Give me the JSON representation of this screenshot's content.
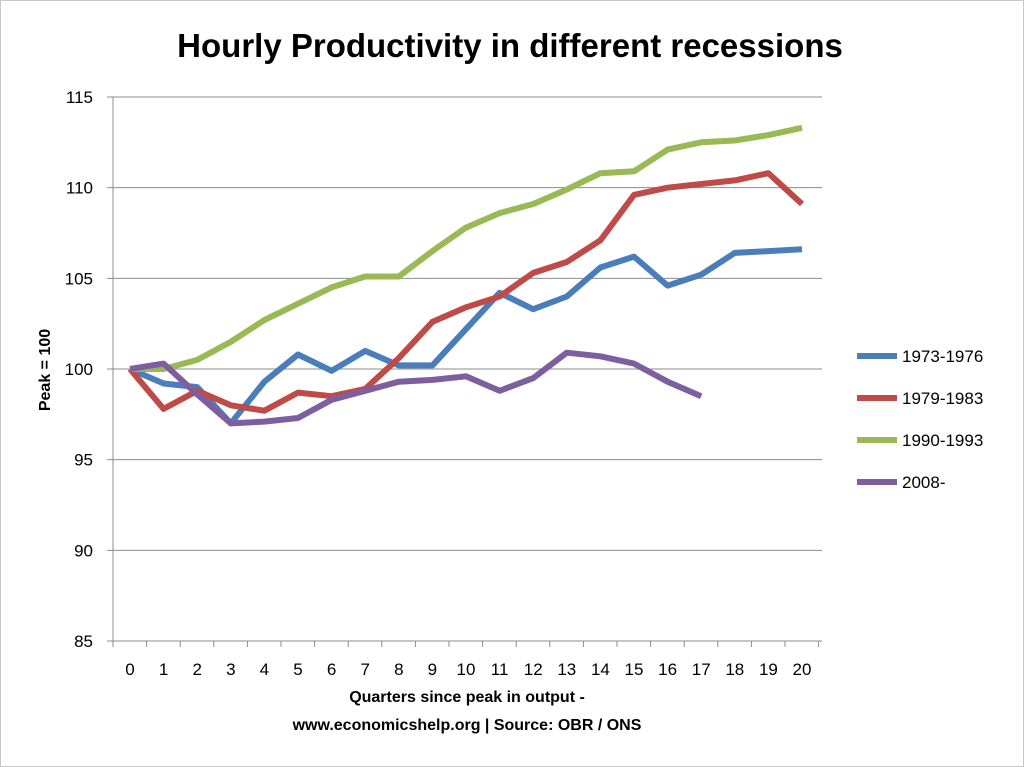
{
  "chart_data": {
    "type": "line",
    "title": "Hourly Productivity in different recessions",
    "xlabel_lines": [
      "Quarters since peak in output -",
      "www.economicshelp.org | Source: OBR / ONS"
    ],
    "ylabel": "Peak = 100",
    "ylim": [
      85,
      115
    ],
    "yticks": [
      85,
      90,
      95,
      100,
      105,
      110,
      115
    ],
    "x": [
      0,
      1,
      2,
      3,
      4,
      5,
      6,
      7,
      8,
      9,
      10,
      11,
      12,
      13,
      14,
      15,
      16,
      17,
      18,
      19,
      20
    ],
    "grid": "horizontal",
    "legend_position": "right",
    "series": [
      {
        "name": "1973-1976",
        "color": "#4a7ebb",
        "values": [
          100,
          99.2,
          99.0,
          97.0,
          99.3,
          100.8,
          99.9,
          101.0,
          100.2,
          100.2,
          102.2,
          104.2,
          103.3,
          104.0,
          105.6,
          106.2,
          104.6,
          105.2,
          106.4,
          106.5,
          106.6
        ]
      },
      {
        "name": "1979-1983",
        "color": "#be4b48",
        "values": [
          100,
          97.8,
          98.8,
          98.0,
          97.7,
          98.7,
          98.5,
          98.9,
          100.6,
          102.6,
          103.4,
          104.0,
          105.3,
          105.9,
          107.1,
          109.6,
          110.0,
          110.2,
          110.4,
          110.8,
          109.1
        ]
      },
      {
        "name": "1990-1993",
        "color": "#98b954",
        "values": [
          100,
          100.0,
          100.5,
          101.5,
          102.7,
          103.6,
          104.5,
          105.1,
          105.1,
          106.5,
          107.8,
          108.6,
          109.1,
          109.9,
          110.8,
          110.9,
          112.1,
          112.5,
          112.6,
          112.9,
          113.3
        ]
      },
      {
        "name": "2008-",
        "color": "#7d5fa0",
        "values": [
          100,
          100.3,
          98.6,
          97.0,
          97.1,
          97.3,
          98.3,
          98.8,
          99.3,
          99.4,
          99.6,
          98.8,
          99.5,
          100.9,
          100.7,
          100.3,
          99.3,
          98.5,
          null,
          null,
          null
        ]
      }
    ]
  }
}
